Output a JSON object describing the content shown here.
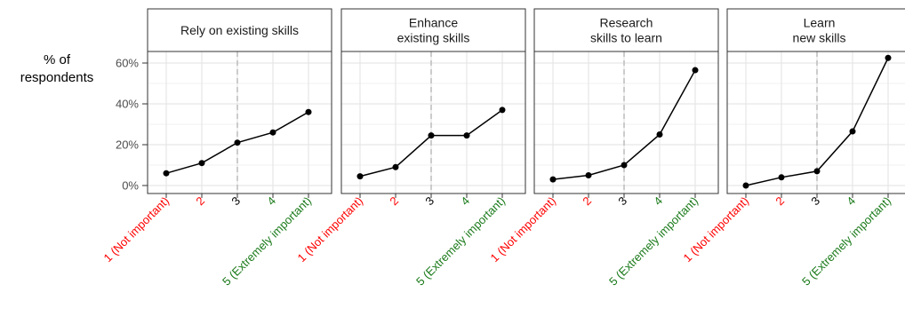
{
  "chart_data": {
    "type": "line",
    "ylabel": "% of\nrespondents",
    "xlabel": "",
    "ylim": [
      0,
      0.62
    ],
    "yticks": [
      0,
      0.2,
      0.4,
      0.6
    ],
    "ytick_labels": [
      "0%",
      "20%",
      "40%",
      "60%"
    ],
    "categories": [
      "1 (Not important)",
      "2",
      "3",
      "4",
      "5 (Extremely important)"
    ],
    "category_colors": [
      "#ff0000",
      "#ff0000",
      "#000000",
      "#1a7a1a",
      "#1a7a1a"
    ],
    "reference_line_category": "3",
    "grid": true,
    "series": [
      {
        "name": "Rely on existing skills",
        "values": [
          0.06,
          0.11,
          0.21,
          0.26,
          0.36
        ]
      },
      {
        "name": "Enhance\nexisting skills",
        "values": [
          0.045,
          0.09,
          0.245,
          0.245,
          0.37
        ]
      },
      {
        "name": "Research\nskills to learn",
        "values": [
          0.03,
          0.05,
          0.1,
          0.25,
          0.565
        ]
      },
      {
        "name": "Learn\nnew skills",
        "values": [
          0.0,
          0.04,
          0.07,
          0.265,
          0.625
        ]
      }
    ]
  }
}
